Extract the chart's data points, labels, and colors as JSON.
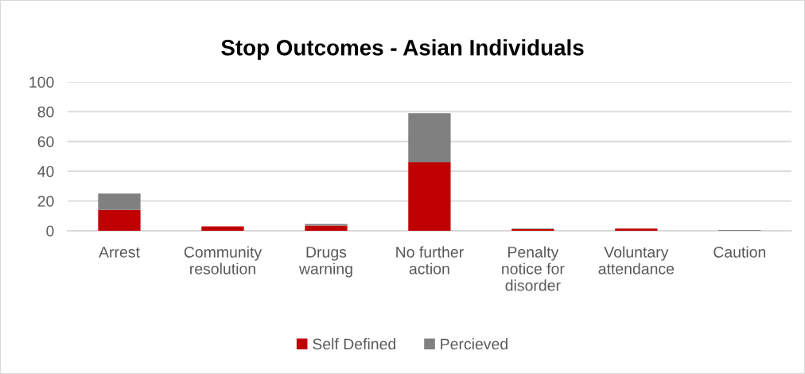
{
  "chart_data": {
    "type": "bar",
    "title": "Stop Outcomes - Asian Individuals",
    "categories": [
      "Arrest",
      "Community\nresolution",
      "Drugs\nwarning",
      "No further\naction",
      "Penalty\nnotice for\ndisorder",
      "Voluntary\nattendance",
      "Caution"
    ],
    "stacked": true,
    "series": [
      {
        "name": "Self Defined",
        "color": "#c00000",
        "values": [
          14,
          3,
          3.5,
          46,
          1,
          1.5,
          0
        ]
      },
      {
        "name": "Percieved",
        "color": "#808080",
        "values": [
          11,
          0,
          1,
          33,
          0.5,
          0,
          0.5
        ]
      }
    ],
    "ylim": [
      0,
      100
    ],
    "yticks": [
      0,
      20,
      40,
      60,
      80,
      100
    ],
    "grid": "y",
    "legend": "bottom"
  }
}
